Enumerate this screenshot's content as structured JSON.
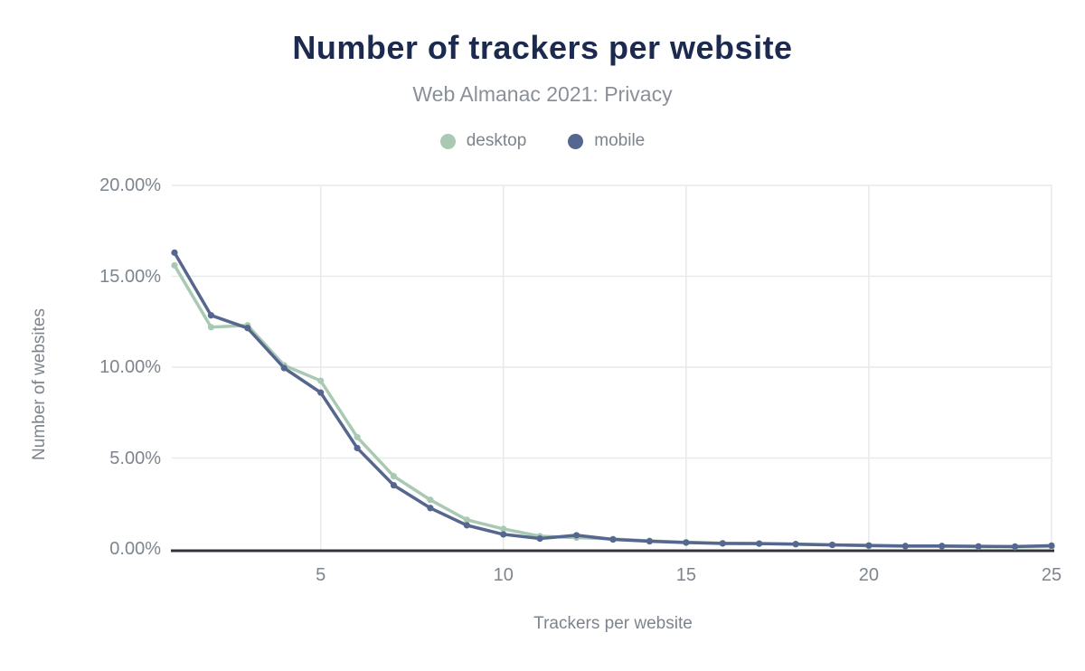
{
  "page": {
    "background_color": "#ffffff",
    "title_color": "#1b2a4e",
    "muted_text_color": "#7d848d",
    "tick_text_color": "#7d858f",
    "gridline_color": "#e7e9eb",
    "axis_line_color": "#30343a"
  },
  "header": {
    "title": "Number of trackers per website",
    "subtitle": "Web Almanac 2021: Privacy"
  },
  "legend": {
    "items": [
      {
        "label": "desktop",
        "color": "#a9c9b4"
      },
      {
        "label": "mobile",
        "color": "#55678e"
      }
    ]
  },
  "axes": {
    "y_title": "Number of websites",
    "x_title": "Trackers per website",
    "y_ticks": [
      {
        "value": 0,
        "label": "0.00%"
      },
      {
        "value": 5,
        "label": "5.00%"
      },
      {
        "value": 10,
        "label": "10.00%"
      },
      {
        "value": 15,
        "label": "15.00%"
      },
      {
        "value": 20,
        "label": "20.00%"
      }
    ],
    "x_ticks": [
      {
        "value": 5,
        "label": "5"
      },
      {
        "value": 10,
        "label": "10"
      },
      {
        "value": 15,
        "label": "15"
      },
      {
        "value": 20,
        "label": "20"
      },
      {
        "value": 25,
        "label": "25"
      }
    ]
  },
  "chart_data": {
    "type": "line",
    "title": "Number of trackers per website",
    "subtitle": "Web Almanac 2021: Privacy",
    "xlabel": "Trackers per website",
    "ylabel": "Number of websites",
    "xlim": [
      1,
      25
    ],
    "ylim": [
      0,
      20
    ],
    "grid": true,
    "legend_position": "top",
    "x": [
      1,
      2,
      3,
      4,
      5,
      6,
      7,
      8,
      9,
      10,
      11,
      12,
      13,
      14,
      15,
      16,
      17,
      18,
      19,
      20,
      21,
      22,
      23,
      24,
      25
    ],
    "series": [
      {
        "name": "desktop",
        "color": "#a9c9b4",
        "values": [
          15.6,
          12.2,
          12.3,
          10.1,
          9.25,
          6.15,
          4.0,
          2.7,
          1.6,
          1.1,
          0.7,
          0.62,
          0.55,
          0.45,
          0.37,
          0.32,
          0.3,
          0.27,
          0.23,
          0.17,
          0.14,
          0.14,
          0.12,
          0.11,
          0.13
        ]
      },
      {
        "name": "mobile",
        "color": "#55678e",
        "values": [
          16.3,
          12.85,
          12.15,
          9.95,
          8.6,
          5.55,
          3.5,
          2.25,
          1.3,
          0.8,
          0.57,
          0.75,
          0.52,
          0.42,
          0.35,
          0.3,
          0.29,
          0.26,
          0.22,
          0.19,
          0.16,
          0.16,
          0.14,
          0.13,
          0.18
        ]
      }
    ],
    "units": "percent of websites"
  }
}
